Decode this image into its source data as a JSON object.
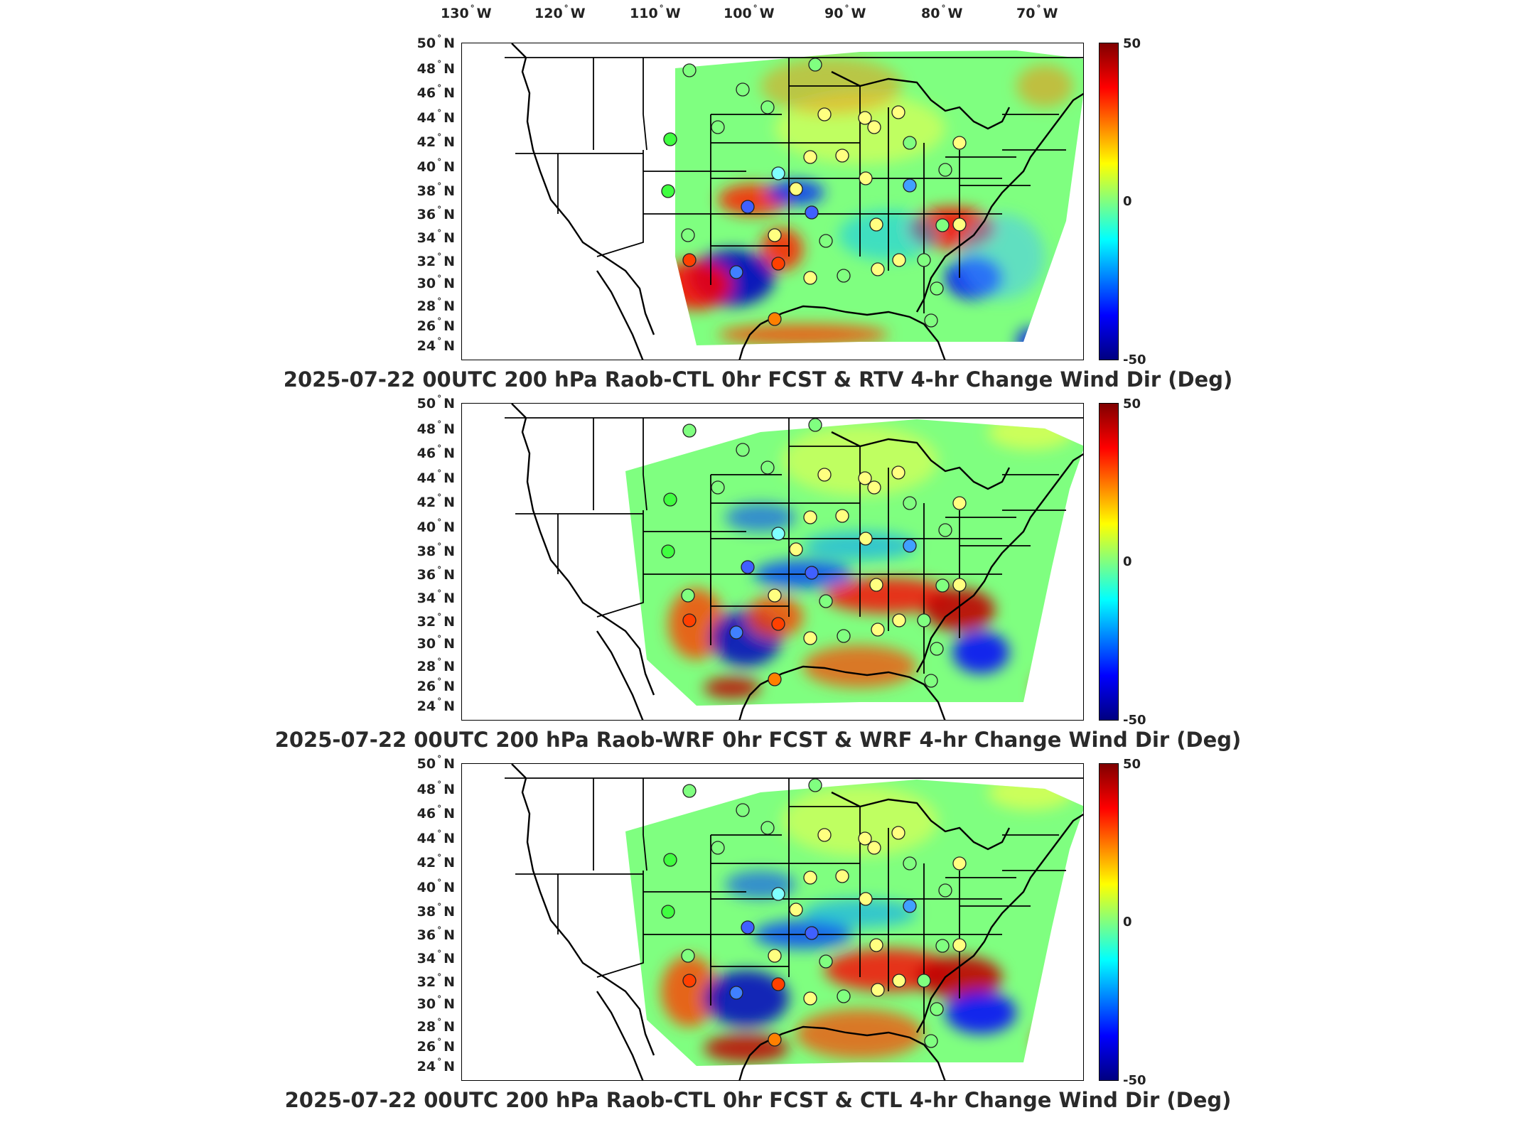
{
  "lon_labels": [
    {
      "value": "130",
      "hemi": "W"
    },
    {
      "value": "120",
      "hemi": "W"
    },
    {
      "value": "110",
      "hemi": "W"
    },
    {
      "value": "100",
      "hemi": "W"
    },
    {
      "value": "90",
      "hemi": "W"
    },
    {
      "value": "80",
      "hemi": "W"
    },
    {
      "value": "70",
      "hemi": "W"
    }
  ],
  "lat_labels": [
    "50",
    "48",
    "46",
    "44",
    "42",
    "40",
    "38",
    "36",
    "34",
    "32",
    "30",
    "28",
    "26",
    "24"
  ],
  "lat_hemi": "N",
  "colorbar": {
    "max": "50",
    "mid": "0",
    "min": "-50",
    "colors": [
      "#800000",
      "#ff0000",
      "#ff8000",
      "#ffff00",
      "#80ff80",
      "#00ffff",
      "#0080ff",
      "#0000ff",
      "#000080"
    ]
  },
  "panels": [
    {
      "title": "2025-07-22 00UTC 200 hPa Raob-CTL 0hr FCST & RTV 4-hr Change Wind Dir (Deg)"
    },
    {
      "title": "2025-07-22 00UTC 200 hPa Raob-WRF 0hr FCST & WRF 4-hr Change Wind Dir (Deg)"
    },
    {
      "title": "2025-07-22 00UTC 200 hPa Raob-CTL 0hr FCST & CTL 4-hr Change Wind Dir (Deg)"
    }
  ]
}
